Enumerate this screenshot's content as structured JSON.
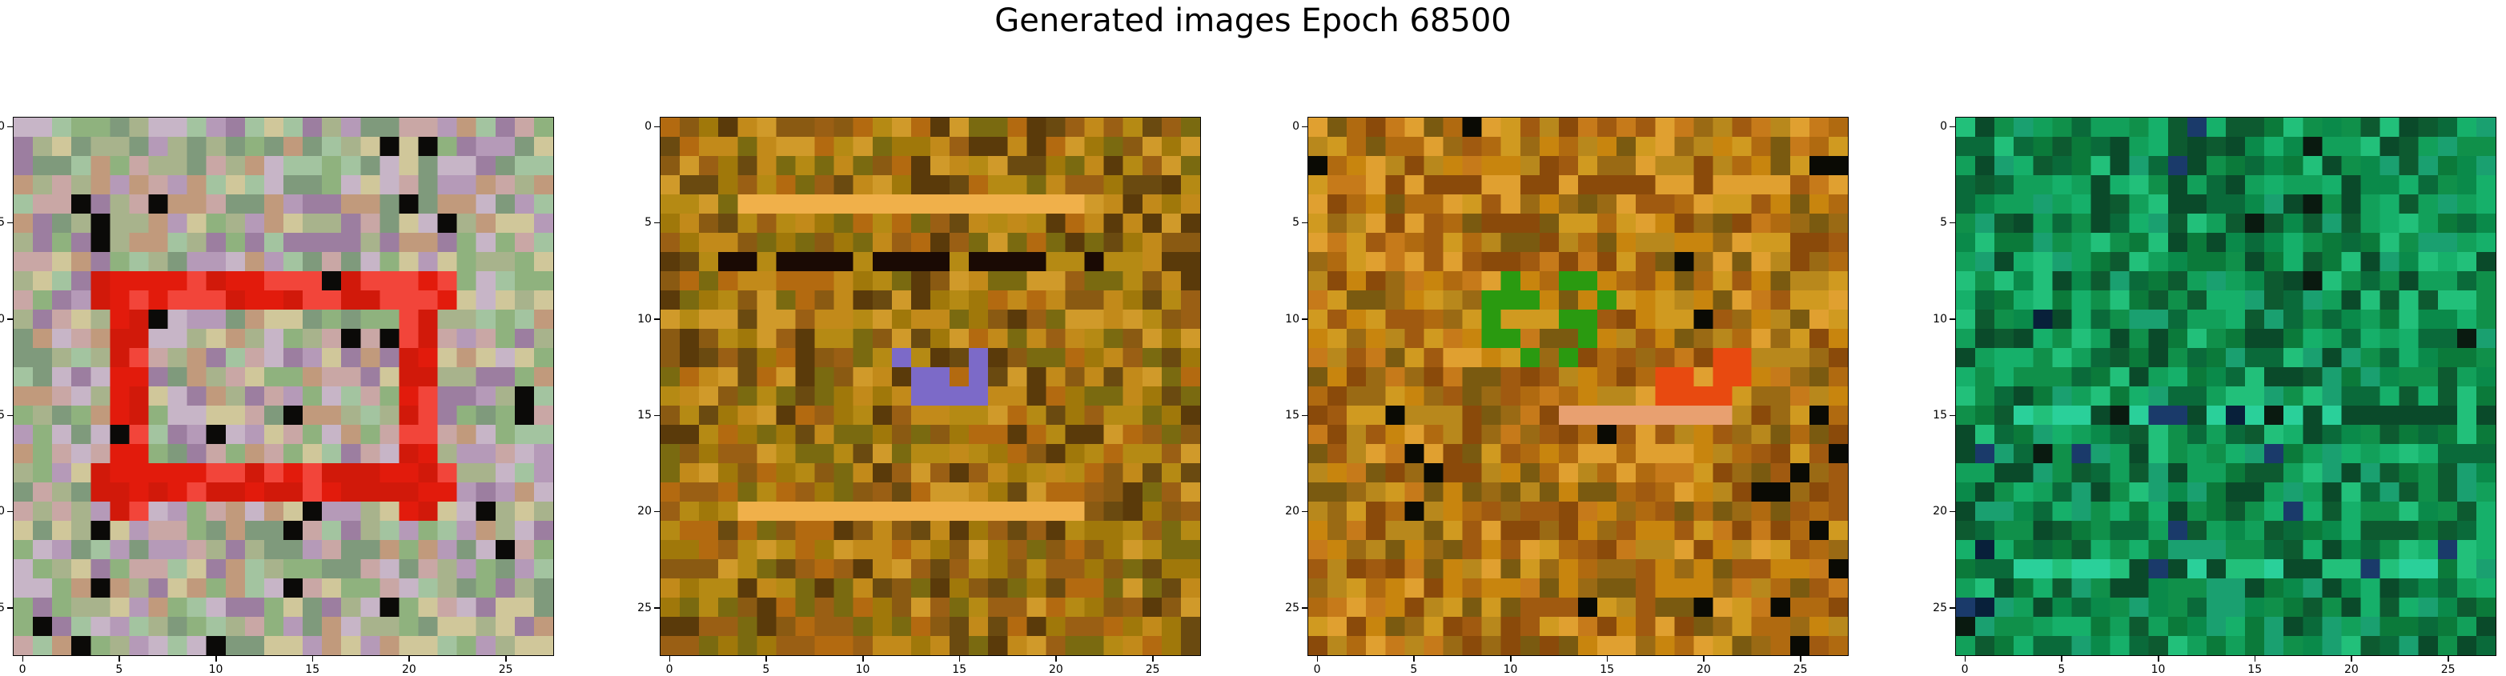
{
  "title": "Generated images Epoch 68500",
  "axes": {
    "ticks": [
      "0",
      "5",
      "10",
      "15",
      "20",
      "25"
    ],
    "tick_values": [
      0,
      5,
      10,
      15,
      20,
      25
    ],
    "grid_size": 28
  },
  "panels": [
    {
      "name": "sample-1",
      "palette": [
        "#a8b38c",
        "#c9a7a5",
        "#8fb27e",
        "#b59ab8",
        "#9c7ea0",
        "#d0c79a",
        "#7f9a7c",
        "#c7b5c7",
        "#a3c4a0",
        "#c19a7c",
        "#e21b0c",
        "#d1190a",
        "#f2453a",
        "#0b0a08",
        "#3c6b2c",
        "#2a7a6a",
        "#e8e4d6",
        "#5a4a9a"
      ],
      "theme": "red-pastel"
    },
    {
      "name": "sample-2",
      "palette": [
        "#8a5a12",
        "#a0780a",
        "#b58a14",
        "#6a4a10",
        "#c28a1a",
        "#7a6a10",
        "#9a5f14",
        "#b36a10",
        "#d09a2a",
        "#5a3a0a",
        "#f0b04a",
        "#1a0a04",
        "#7c6ac8",
        "#c0a040",
        "#4a5a1a",
        "#a06a2a"
      ],
      "theme": "brown-olive"
    },
    {
      "name": "sample-3",
      "palette": [
        "#b06a10",
        "#c8850e",
        "#9a6a14",
        "#d09a20",
        "#a05a10",
        "#7a5a10",
        "#b8881c",
        "#e0a030",
        "#8a4a0a",
        "#c67a1a",
        "#e84a10",
        "#f0c040",
        "#2a9a10",
        "#0a0a04",
        "#c8304a",
        "#e8a070",
        "#3a2a80"
      ],
      "theme": "orange-olive"
    },
    {
      "name": "sample-4",
      "palette": [
        "#0a8a4a",
        "#0b7a3a",
        "#12a05a",
        "#0a6a3a",
        "#16b06a",
        "#0d5a30",
        "#1aa070",
        "#10904a",
        "#22c07a",
        "#0a4a2a",
        "#2ad09a",
        "#08203a",
        "#0a1a10",
        "#1a3a6a",
        "#c03a6a",
        "#3aa0a0"
      ],
      "theme": "green"
    }
  ]
}
